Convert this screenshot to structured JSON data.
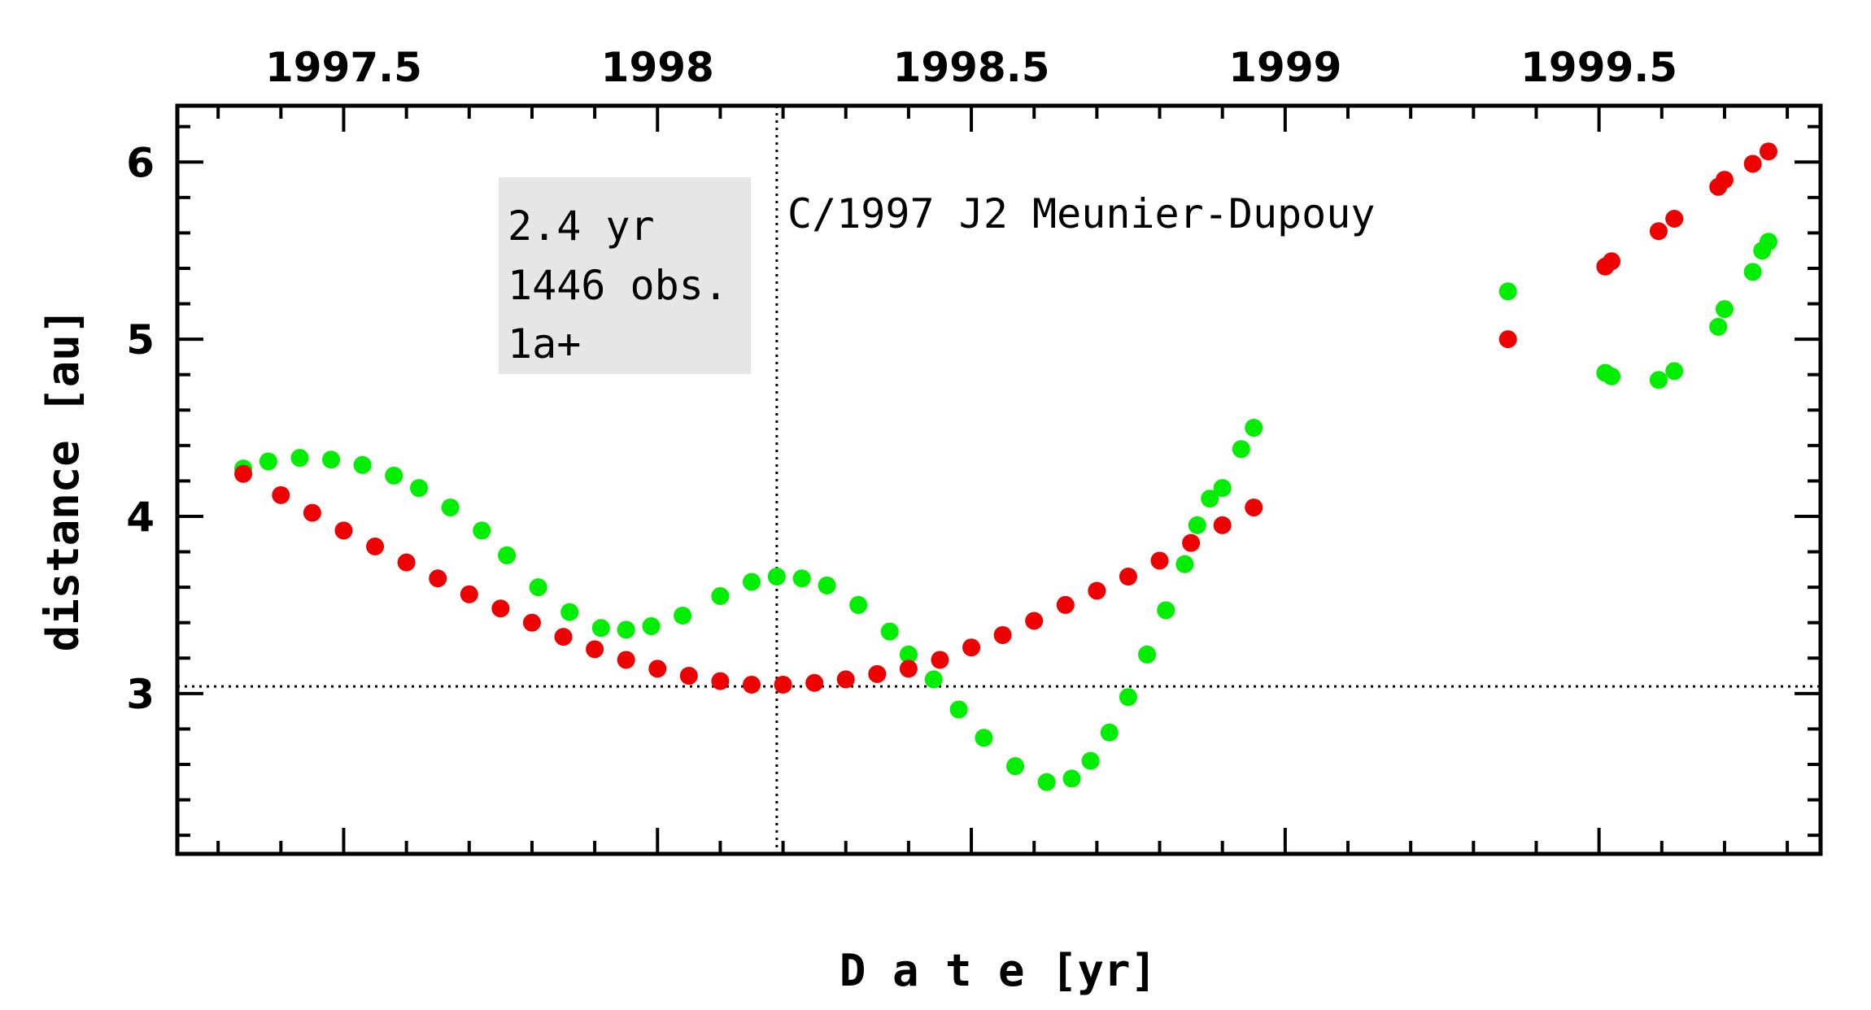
{
  "chart_data": {
    "type": "scatter",
    "title": "C/1997 J2 Meunier-Dupouy",
    "annotations": [
      "2.4 yr",
      "1446 obs.",
      "1a+"
    ],
    "x_label": "D a t e [yr]",
    "y_label": "distance [au]",
    "xlim": [
      1997.235,
      1999.853
    ],
    "ylim": [
      2.095,
      6.318
    ],
    "xticks": [
      1997.5,
      1998,
      1998.5,
      1999,
      1999.5
    ],
    "yticks": [
      3,
      4,
      5,
      6
    ],
    "xminorticks": [
      1997.3,
      1997.4,
      1997.6,
      1997.7,
      1997.8,
      1997.9,
      1998.1,
      1998.2,
      1998.3,
      1998.4,
      1998.6,
      1998.7,
      1998.8,
      1998.9,
      1999.1,
      1999.2,
      1999.3,
      1999.4,
      1999.6,
      1999.7,
      1999.8
    ],
    "yminorticks": [
      2.2,
      2.4,
      2.6,
      2.8,
      3.2,
      3.4,
      3.6,
      3.8,
      4.2,
      4.4,
      4.6,
      4.8,
      5.2,
      5.4,
      5.6,
      5.8,
      6.2
    ],
    "hline": 3.04,
    "vline": 1998.19,
    "series": [
      {
        "color": "#00ee00",
        "x": [
          1997.34,
          1997.38,
          1997.43,
          1997.48,
          1997.53,
          1997.58,
          1997.62,
          1997.67,
          1997.72,
          1997.76,
          1997.81,
          1997.86,
          1997.91,
          1997.95,
          1997.99,
          1998.04,
          1998.1,
          1998.15,
          1998.19,
          1998.23,
          1998.27,
          1998.32,
          1998.37,
          1998.4,
          1998.44,
          1998.48,
          1998.52,
          1998.57,
          1998.62,
          1998.66,
          1998.69,
          1998.72,
          1998.75,
          1998.78,
          1998.81,
          1998.84,
          1998.86,
          1998.88,
          1998.9,
          1998.93,
          1998.95,
          1999.355,
          1999.51,
          1999.52,
          1999.595,
          1999.62,
          1999.69,
          1999.7,
          1999.745,
          1999.76,
          1999.77
        ],
        "values": [
          4.27,
          4.31,
          4.33,
          4.32,
          4.29,
          4.23,
          4.16,
          4.05,
          3.92,
          3.78,
          3.6,
          3.46,
          3.37,
          3.36,
          3.38,
          3.44,
          3.55,
          3.63,
          3.66,
          3.65,
          3.61,
          3.5,
          3.35,
          3.22,
          3.08,
          2.91,
          2.75,
          2.59,
          2.5,
          2.52,
          2.62,
          2.78,
          2.98,
          3.22,
          3.47,
          3.73,
          3.95,
          4.1,
          4.16,
          4.38,
          4.5,
          5.27,
          4.81,
          4.79,
          4.77,
          4.82,
          5.07,
          5.17,
          5.38,
          5.5,
          5.55
        ]
      },
      {
        "color": "#ee0000",
        "x": [
          1997.34,
          1997.4,
          1997.45,
          1997.5,
          1997.55,
          1997.6,
          1997.65,
          1997.7,
          1997.75,
          1997.8,
          1997.85,
          1997.9,
          1997.95,
          1998.0,
          1998.05,
          1998.1,
          1998.15,
          1998.2,
          1998.25,
          1998.3,
          1998.35,
          1998.4,
          1998.45,
          1998.5,
          1998.55,
          1998.6,
          1998.65,
          1998.7,
          1998.75,
          1998.8,
          1998.85,
          1998.9,
          1998.95,
          1999.355,
          1999.51,
          1999.52,
          1999.595,
          1999.62,
          1999.69,
          1999.7,
          1999.745,
          1999.77
        ],
        "values": [
          4.24,
          4.12,
          4.02,
          3.92,
          3.83,
          3.74,
          3.65,
          3.56,
          3.48,
          3.4,
          3.32,
          3.25,
          3.19,
          3.14,
          3.1,
          3.07,
          3.05,
          3.05,
          3.06,
          3.08,
          3.11,
          3.14,
          3.19,
          3.26,
          3.33,
          3.41,
          3.5,
          3.58,
          3.66,
          3.75,
          3.85,
          3.95,
          4.05,
          5.0,
          5.41,
          5.44,
          5.61,
          5.68,
          5.86,
          5.9,
          5.99,
          6.06
        ]
      }
    ]
  }
}
